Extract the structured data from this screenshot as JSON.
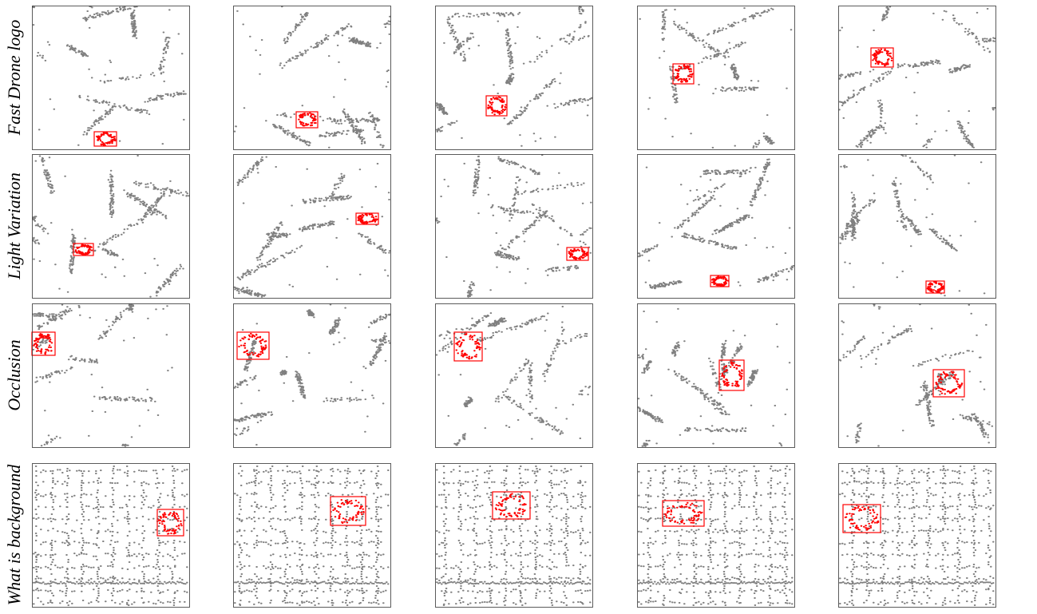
{
  "row_labels": [
    "Fast Drone logo",
    "Light Variation",
    "Occlusion",
    "What is background"
  ]
}
